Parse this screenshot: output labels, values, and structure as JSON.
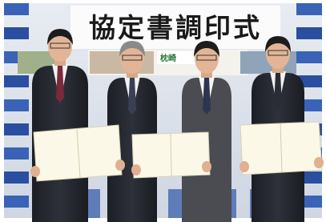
{
  "banner": {
    "title": "協定書調印式"
  },
  "backdrop": {
    "logo_text": "枕崎"
  }
}
